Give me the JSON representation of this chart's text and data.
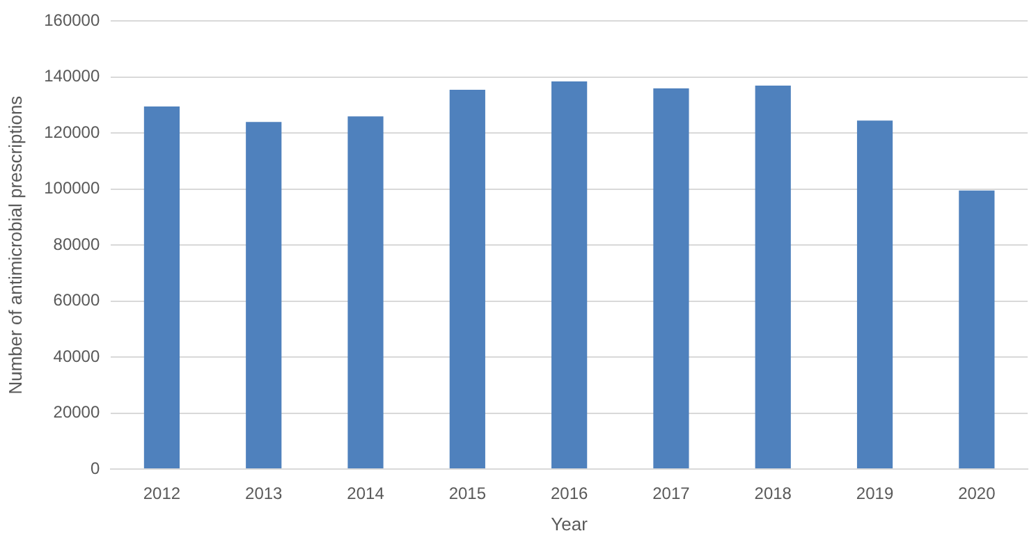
{
  "chart_data": {
    "type": "bar",
    "xlabel": "Year",
    "ylabel": "Number of antimicrobial prescriptions",
    "categories": [
      "2012",
      "2013",
      "2014",
      "2015",
      "2016",
      "2017",
      "2018",
      "2019",
      "2020"
    ],
    "values": [
      129500,
      124000,
      126000,
      135500,
      138500,
      136000,
      137000,
      124500,
      99500
    ],
    "color": "#4f81bd",
    "ylim": [
      0,
      160000
    ],
    "yticks": [
      0,
      20000,
      40000,
      60000,
      80000,
      100000,
      120000,
      140000,
      160000
    ],
    "grid": "y",
    "legend": false
  }
}
